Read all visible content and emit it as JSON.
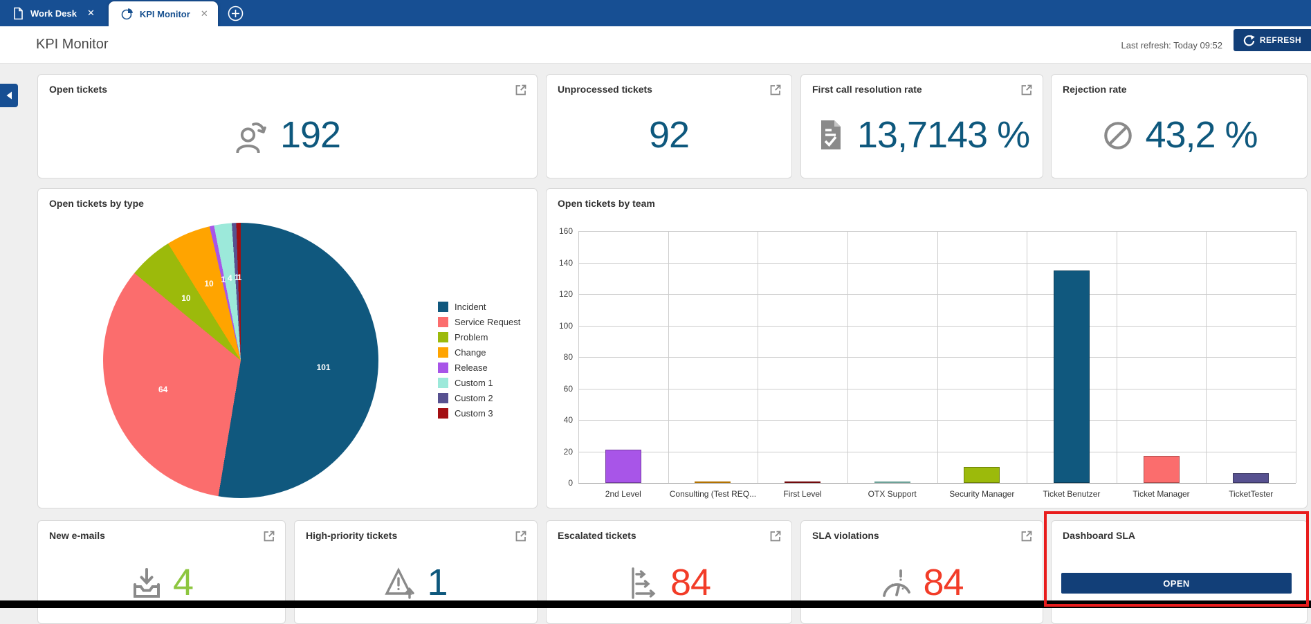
{
  "tabbar": {
    "tabs": [
      {
        "label": "Work Desk",
        "active": false
      },
      {
        "label": "KPI Monitor",
        "active": true
      }
    ]
  },
  "header": {
    "title": "KPI Monitor",
    "last_refresh": "Last refresh: Today 09:52",
    "refresh_label": "REFRESH"
  },
  "colors": {
    "brand_navy": "#174f93",
    "button_navy": "#123f78",
    "kpi_blue": "#0e587d",
    "kpi_green": "#8dc63f",
    "kpi_red": "#f23c28",
    "icon_gray": "#8a8a8a",
    "annotation_red": "#e81c1c"
  },
  "kpis": {
    "row1": [
      {
        "title": "Open tickets",
        "value": "192",
        "icon": "person-refresh-icon",
        "color": "#0e587d"
      },
      {
        "title": "Unprocessed tickets",
        "value": "92",
        "icon": "",
        "color": "#0e587d"
      },
      {
        "title": "First call resolution rate",
        "value": "13,7143 %",
        "icon": "document-check-icon",
        "color": "#0e587d"
      },
      {
        "title": "Rejection rate",
        "value": "43,2 %",
        "icon": "prohibited-icon",
        "color": "#0e587d"
      }
    ],
    "row3": [
      {
        "title": "New e-mails",
        "value": "4",
        "icon": "inbox-arrow-icon",
        "color": "#8dc63f"
      },
      {
        "title": "High-priority tickets",
        "value": "1",
        "icon": "warning-escalate-icon",
        "color": "#0e587d"
      },
      {
        "title": "Escalated tickets",
        "value": "84",
        "icon": "escalation-icon",
        "color": "#f23c28"
      },
      {
        "title": "SLA violations",
        "value": "84",
        "icon": "gauge-alert-icon",
        "color": "#f23c28"
      },
      {
        "title": "Dashboard SLA",
        "button_label": "OPEN"
      }
    ]
  },
  "chart_data": [
    {
      "type": "pie",
      "title": "Open tickets by type",
      "total": 192,
      "series": [
        {
          "label": "Incident",
          "value": 101,
          "color": "#10587e"
        },
        {
          "label": "Service Request",
          "value": 64,
          "color": "#fb6d6d"
        },
        {
          "label": "Problem",
          "value": 10,
          "color": "#9cba0b"
        },
        {
          "label": "Change",
          "value": 10,
          "color": "#ffa400"
        },
        {
          "label": "Release",
          "value": 1,
          "color": "#a855e8"
        },
        {
          "label": "Custom 1",
          "value": 4,
          "color": "#9ce9da"
        },
        {
          "label": "Custom 2",
          "value": 1,
          "color": "#575190"
        },
        {
          "label": "Custom 3",
          "value": 1,
          "color": "#a30e12"
        }
      ],
      "legend_position": "right",
      "labels_shown": true
    },
    {
      "type": "bar",
      "title": "Open tickets by team",
      "categories": [
        "2nd Level",
        "Consulting (Test REQ...",
        "First Level",
        "OTX Support",
        "Security Manager",
        "Ticket Benutzer",
        "Ticket Manager",
        "TicketTester"
      ],
      "values": [
        21,
        1,
        1,
        1,
        10,
        135,
        17,
        6
      ],
      "colors": [
        "#a855e8",
        "#ffa400",
        "#a30e12",
        "#9ce9da",
        "#9cba0b",
        "#10587e",
        "#fb6d6d",
        "#575190"
      ],
      "ylim": [
        0,
        160
      ],
      "ytick_step": 20,
      "grid": true,
      "legend_position": "none"
    }
  ]
}
